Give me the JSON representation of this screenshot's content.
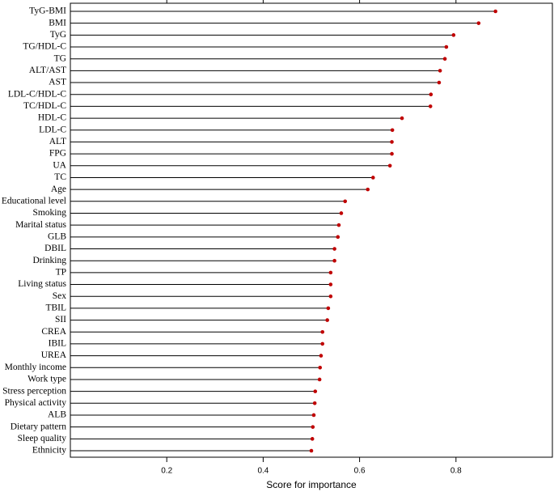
{
  "chart_data": {
    "type": "lollipop",
    "xlabel": "Score for importance",
    "categories": [
      "TyG-BMI",
      "BMI",
      "TyG",
      "TG/HDL-C",
      "TG",
      "ALT/AST",
      "AST",
      "LDL-C/HDL-C",
      "TC/HDL-C",
      "HDL-C",
      "LDL-C",
      "ALT",
      "FPG",
      "UA",
      "TC",
      "Age",
      "Educational level",
      "Smoking",
      "Marital status",
      "GLB",
      "DBIL",
      "Drinking",
      "TP",
      "Living status",
      "Sex",
      "TBIL",
      "SII",
      "CREA",
      "IBIL",
      "UREA",
      "Monthly income",
      "Work type",
      "Stress perception",
      "Physical activity",
      "ALB",
      "Dietary pattern",
      "Sleep quality",
      "Ethnicity"
    ],
    "values": [
      0.882,
      0.847,
      0.795,
      0.78,
      0.777,
      0.767,
      0.765,
      0.748,
      0.747,
      0.688,
      0.668,
      0.667,
      0.667,
      0.663,
      0.628,
      0.617,
      0.57,
      0.562,
      0.557,
      0.555,
      0.548,
      0.548,
      0.54,
      0.54,
      0.54,
      0.535,
      0.533,
      0.523,
      0.523,
      0.52,
      0.518,
      0.517,
      0.508,
      0.507,
      0.505,
      0.503,
      0.502,
      0.5
    ],
    "color": "#c00000",
    "xlim": [
      0,
      1
    ],
    "xticks": [
      0.2,
      0.4,
      0.6,
      0.8
    ]
  }
}
